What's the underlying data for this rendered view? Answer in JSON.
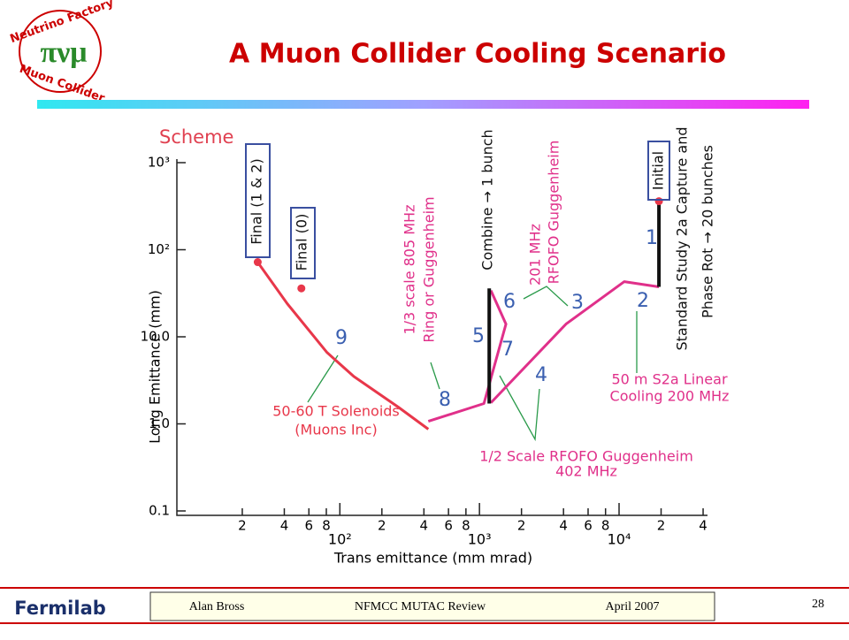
{
  "header": {
    "title": "A Muon Collider Cooling Scenario",
    "logo_top": "Neutrino Factory",
    "logo_bottom": "Muon Collider",
    "logo_symbols": "πνμ"
  },
  "chart_data": {
    "type": "line",
    "title": "Scheme",
    "x_label": "Trans emittance  (mm mrad)",
    "y_label": "Long Emittance (mm)",
    "xscale": "log",
    "yscale": "log",
    "xlim": [
      6.8,
      43000
    ],
    "ylim": [
      0.1,
      1000
    ],
    "xticks": [
      {
        "value": 20,
        "label": "2"
      },
      {
        "value": 40,
        "label": "4"
      },
      {
        "value": 60,
        "label": "6"
      },
      {
        "value": 80,
        "label": "8"
      },
      {
        "value": 100,
        "label": "10²"
      },
      {
        "value": 200,
        "label": "2"
      },
      {
        "value": 400,
        "label": "4"
      },
      {
        "value": 600,
        "label": "6"
      },
      {
        "value": 800,
        "label": "8"
      },
      {
        "value": 1000,
        "label": "10³"
      },
      {
        "value": 2000,
        "label": "2"
      },
      {
        "value": 4000,
        "label": "4"
      },
      {
        "value": 6000,
        "label": "6"
      },
      {
        "value": 8000,
        "label": "8"
      },
      {
        "value": 10000,
        "label": "10⁴"
      },
      {
        "value": 20000,
        "label": "2"
      },
      {
        "value": 40000,
        "label": "4"
      }
    ],
    "yticks": [
      {
        "value": 0.1,
        "label": "0.1"
      },
      {
        "value": 1,
        "label": "1.0"
      },
      {
        "value": 10,
        "label": "10.0"
      },
      {
        "value": 100,
        "label": "10²"
      },
      {
        "value": 1000,
        "label": "10³"
      }
    ],
    "series": [
      {
        "color": "#e8374a",
        "x": [
          25.8,
          42,
          81,
          126,
          262,
          430
        ],
        "values": [
          72,
          24,
          6.6,
          3.5,
          1.56,
          0.87
        ]
      },
      {
        "color": "#e0308a",
        "x": [
          430,
          1076,
          1549,
          1208,
          null,
          1208,
          4170,
          10900,
          19300
        ],
        "values": [
          1.07,
          1.71,
          14,
          34,
          null,
          1.75,
          14,
          43,
          37.5
        ]
      },
      {
        "color": "#111111",
        "x": [
          1175,
          1175,
          null,
          19300,
          19300
        ],
        "values": [
          1.71,
          36,
          null,
          37.5,
          361
        ]
      }
    ],
    "points": {
      "color": "#e8374a",
      "x": [
        25.8,
        53,
        19300
      ],
      "values": [
        72,
        36,
        361
      ]
    },
    "annotations": [
      "Final (1 & 2)",
      "Final (0)",
      "9",
      "50-60 T Solenoids",
      "(Muons Inc)",
      "1/3 scale 805 MHz",
      "Ring or Guggenheim",
      "8",
      "Combine → 1 bunch",
      "5",
      "7",
      "6",
      "3",
      "4",
      "2",
      "1",
      "201 MHz",
      "RFOFO Guggenheim",
      "Initial",
      "Standard Study 2a Capture and",
      "Phase Rot  → 20 bunches",
      "50 m S2a Linear",
      "Cooling 200 MHz",
      "1/2 Scale RFOFO Guggenheim",
      "402 MHz"
    ]
  },
  "footer": {
    "author": "Alan Bross",
    "event": "NFMCC MUTAC Review",
    "date": "April 2007",
    "page": "28",
    "lab": "Fermilab"
  }
}
